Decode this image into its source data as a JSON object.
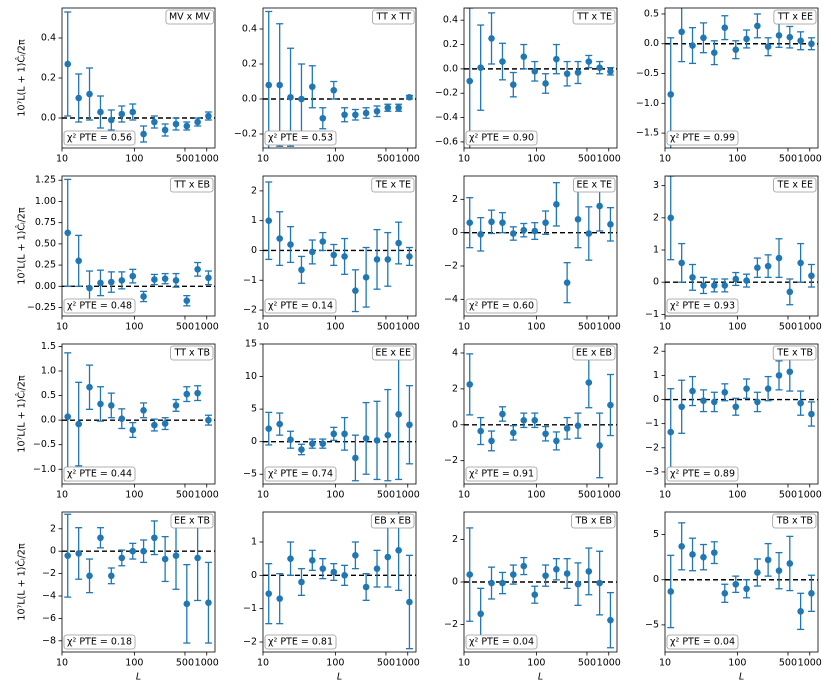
{
  "chart_data": [
    {
      "type": "errorbar",
      "title": "MV x MV",
      "annotation": "χ² PTE = 0.56",
      "ylabel": "10⁷L(L + 1)Ĉₗ/2π",
      "color": "#1f77b4",
      "xscale": "log",
      "hline": 0,
      "x": [
        12,
        17,
        24,
        34,
        48,
        67,
        95,
        134,
        189,
        266,
        376,
        530,
        748,
        1055
      ],
      "values": [
        0.27,
        0.1,
        0.12,
        0.03,
        -0.01,
        0.02,
        0.03,
        -0.08,
        -0.02,
        -0.06,
        -0.03,
        -0.04,
        -0.02,
        0.01
      ],
      "errors": [
        0.26,
        0.12,
        0.13,
        0.08,
        0.05,
        0.04,
        0.04,
        0.04,
        0.03,
        0.03,
        0.03,
        0.02,
        0.02,
        0.02
      ],
      "xlim": [
        10,
        1300
      ],
      "xticks": [
        10,
        100,
        500,
        1000
      ],
      "ylim": [
        -0.15,
        0.55
      ],
      "yticks": [
        {
          "value": 0,
          "label": "0.0"
        },
        0.2,
        0.4
      ]
    },
    {
      "type": "errorbar",
      "title": "TT x TT",
      "annotation": "χ² PTE = 0.53",
      "color": "#1f77b4",
      "xscale": "log",
      "hline": 0,
      "x": [
        12,
        17,
        24,
        34,
        48,
        67,
        95,
        134,
        189,
        266,
        376,
        530,
        748,
        1055
      ],
      "values": [
        0.08,
        0.08,
        0.01,
        0.0,
        0.07,
        -0.11,
        0.05,
        -0.09,
        -0.09,
        -0.08,
        -0.07,
        -0.05,
        -0.05,
        0.01
      ],
      "errors": [
        0.42,
        0.35,
        0.28,
        0.2,
        0.12,
        0.06,
        0.05,
        0.04,
        0.03,
        0.03,
        0.03,
        0.02,
        0.02,
        0.01
      ],
      "xlim": [
        10,
        1300
      ],
      "xticks": [
        10,
        100,
        500,
        1000
      ],
      "ylim": [
        -0.28,
        0.52
      ],
      "yticks": [
        {
          "value": -0.2,
          "label": "−0.2"
        },
        {
          "value": 0,
          "label": "0.0"
        },
        0.2,
        0.4
      ]
    },
    {
      "type": "errorbar",
      "title": "TT x TE",
      "annotation": "χ² PTE = 0.90",
      "color": "#1f77b4",
      "xscale": "log",
      "hline": 0,
      "x": [
        12,
        17,
        24,
        34,
        48,
        67,
        95,
        134,
        189,
        266,
        376,
        530,
        748,
        1055
      ],
      "values": [
        -0.1,
        0.01,
        0.25,
        0.06,
        -0.13,
        0.1,
        -0.02,
        -0.12,
        0.08,
        -0.04,
        -0.03,
        0.06,
        0.01,
        -0.02
      ],
      "errors": [
        0.6,
        0.35,
        0.21,
        0.15,
        0.1,
        0.1,
        0.08,
        0.08,
        0.12,
        0.1,
        0.09,
        0.05,
        0.05,
        0.03
      ],
      "xlim": [
        10,
        1300
      ],
      "xticks": [
        10,
        100,
        500,
        1000
      ],
      "ylim": [
        -0.65,
        0.5
      ],
      "yticks": [
        {
          "value": -0.6,
          "label": "−0.6"
        },
        {
          "value": -0.4,
          "label": "−0.4"
        },
        {
          "value": -0.2,
          "label": "−0.2"
        },
        {
          "value": 0,
          "label": "0.0"
        },
        0.2,
        0.4
      ]
    },
    {
      "type": "errorbar",
      "title": "TT x EE",
      "annotation": "χ² PTE = 0.99",
      "color": "#1f77b4",
      "xscale": "log",
      "hline": 0,
      "x": [
        12,
        17,
        24,
        34,
        48,
        67,
        95,
        134,
        189,
        266,
        376,
        530,
        748,
        1055
      ],
      "values": [
        -0.85,
        0.2,
        -0.03,
        0.1,
        -0.15,
        0.27,
        -0.1,
        0.08,
        0.3,
        -0.05,
        0.14,
        0.11,
        0.05,
        0.0
      ],
      "errors": [
        0.95,
        0.5,
        0.3,
        0.25,
        0.2,
        0.2,
        0.15,
        0.15,
        0.2,
        0.15,
        0.2,
        0.18,
        0.15,
        0.1
      ],
      "xlim": [
        10,
        1300
      ],
      "xticks": [
        10,
        100,
        500,
        1000
      ],
      "ylim": [
        -1.75,
        0.6
      ],
      "yticks": [
        {
          "value": -1.5,
          "label": "−1.5"
        },
        {
          "value": -1,
          "label": "−1.0"
        },
        {
          "value": -0.5,
          "label": "−0.5"
        },
        {
          "value": 0,
          "label": "0.0"
        },
        0.5
      ]
    },
    {
      "type": "errorbar",
      "title": "TT x EB",
      "annotation": "χ² PTE = 0.48",
      "ylabel": "10⁷L(L + 1)Ĉₗ/2π",
      "color": "#1f77b4",
      "xscale": "log",
      "hline": 0,
      "x": [
        12,
        17,
        24,
        34,
        48,
        67,
        95,
        134,
        189,
        266,
        376,
        530,
        748,
        1055
      ],
      "values": [
        0.63,
        0.3,
        -0.02,
        0.04,
        0.05,
        0.07,
        0.12,
        -0.12,
        0.08,
        0.09,
        0.07,
        -0.17,
        0.2,
        0.1
      ],
      "errors": [
        0.63,
        0.3,
        0.2,
        0.15,
        0.12,
        0.1,
        0.08,
        0.06,
        0.06,
        0.06,
        0.08,
        0.06,
        0.08,
        0.08
      ],
      "xlim": [
        10,
        1300
      ],
      "xticks": [
        10,
        100,
        500,
        1000
      ],
      "ylim": [
        -0.35,
        1.3
      ],
      "yticks": [
        {
          "value": -0.25,
          "label": "−0.25"
        },
        {
          "value": 0,
          "label": "0.00"
        },
        0.25,
        {
          "value": 0.5,
          "label": "0.50"
        },
        0.75,
        {
          "value": 1,
          "label": "1.00"
        },
        1.25
      ]
    },
    {
      "type": "errorbar",
      "title": "TE x TE",
      "annotation": "χ² PTE = 0.14",
      "color": "#1f77b4",
      "xscale": "log",
      "hline": 0,
      "x": [
        12,
        17,
        24,
        34,
        48,
        67,
        95,
        134,
        189,
        266,
        376,
        530,
        748,
        1055
      ],
      "values": [
        1.0,
        0.4,
        0.2,
        -0.65,
        -0.05,
        0.3,
        -0.15,
        -0.2,
        -1.35,
        -0.9,
        -0.3,
        -0.3,
        0.25,
        -0.2
      ],
      "errors": [
        1.3,
        0.9,
        0.6,
        0.45,
        0.4,
        0.3,
        0.35,
        0.6,
        0.7,
        1.0,
        1.0,
        0.9,
        0.7,
        0.3
      ],
      "xlim": [
        10,
        1300
      ],
      "xticks": [
        10,
        100,
        500,
        1000
      ],
      "ylim": [
        -2.2,
        2.5
      ],
      "yticks": [
        {
          "value": -2,
          "label": "−2"
        },
        {
          "value": -1,
          "label": "−1"
        },
        0,
        1,
        2
      ]
    },
    {
      "type": "errorbar",
      "title": "EE x TE",
      "annotation": "χ² PTE = 0.60",
      "color": "#1f77b4",
      "xscale": "log",
      "hline": 0,
      "x": [
        12,
        17,
        24,
        34,
        48,
        67,
        95,
        134,
        189,
        266,
        376,
        530,
        748,
        1055
      ],
      "values": [
        0.6,
        -0.1,
        0.65,
        0.6,
        -0.05,
        0.15,
        0.1,
        0.6,
        1.7,
        -3.0,
        0.8,
        -0.05,
        1.6,
        0.5
      ],
      "errors": [
        1.5,
        1.0,
        0.7,
        0.6,
        0.4,
        0.4,
        0.5,
        0.7,
        1.3,
        1.2,
        1.7,
        1.6,
        1.5,
        1.0
      ],
      "xlim": [
        10,
        1300
      ],
      "xticks": [
        10,
        100,
        500,
        1000
      ],
      "ylim": [
        -5,
        3.4
      ],
      "yticks": [
        {
          "value": -4,
          "label": "−4"
        },
        {
          "value": -2,
          "label": "−2"
        },
        0,
        2
      ]
    },
    {
      "type": "errorbar",
      "title": "TE x EE",
      "annotation": "χ² PTE = 0.93",
      "color": "#1f77b4",
      "xscale": "log",
      "hline": 0,
      "x": [
        12,
        17,
        24,
        34,
        48,
        67,
        95,
        134,
        189,
        266,
        376,
        530,
        748,
        1055
      ],
      "values": [
        2.0,
        0.6,
        0.15,
        -0.1,
        -0.1,
        -0.1,
        0.1,
        0.05,
        0.45,
        0.5,
        0.75,
        -0.3,
        0.6,
        0.2
      ],
      "errors": [
        1.3,
        0.6,
        0.4,
        0.25,
        0.2,
        0.2,
        0.2,
        0.2,
        0.3,
        0.35,
        0.6,
        0.4,
        0.6,
        0.35
      ],
      "xlim": [
        10,
        1300
      ],
      "xticks": [
        10,
        100,
        500,
        1000
      ],
      "ylim": [
        -1.05,
        3.3
      ],
      "yticks": [
        {
          "value": -1,
          "label": "−1"
        },
        0,
        1,
        2,
        3
      ]
    },
    {
      "type": "errorbar",
      "title": "TT x TB",
      "annotation": "χ² PTE = 0.44",
      "ylabel": "10⁷L(L + 1)Ĉₗ/2π",
      "color": "#1f77b4",
      "xscale": "log",
      "hline": 0,
      "x": [
        12,
        17,
        24,
        34,
        48,
        67,
        95,
        134,
        189,
        266,
        376,
        530,
        748,
        1055
      ],
      "values": [
        0.07,
        -0.08,
        0.67,
        0.33,
        0.3,
        0.03,
        -0.2,
        0.2,
        -0.1,
        -0.07,
        0.3,
        0.53,
        0.55,
        0.0
      ],
      "errors": [
        1.3,
        0.85,
        0.45,
        0.35,
        0.25,
        0.2,
        0.15,
        0.15,
        0.12,
        0.12,
        0.12,
        0.15,
        0.15,
        0.1
      ],
      "xlim": [
        10,
        1300
      ],
      "xticks": [
        10,
        100,
        500,
        1000
      ],
      "ylim": [
        -1.3,
        1.55
      ],
      "yticks": [
        {
          "value": -1,
          "label": "−1.0"
        },
        {
          "value": -0.5,
          "label": "−0.5"
        },
        {
          "value": 0,
          "label": "0.0"
        },
        0.5,
        {
          "value": 1,
          "label": "1.0"
        },
        1.5
      ]
    },
    {
      "type": "errorbar",
      "title": "EE x EE",
      "annotation": "χ² PTE = 0.74",
      "color": "#1f77b4",
      "xscale": "log",
      "hline": 0,
      "x": [
        12,
        17,
        24,
        34,
        48,
        67,
        95,
        134,
        189,
        266,
        376,
        530,
        748,
        1055
      ],
      "values": [
        2.0,
        2.7,
        0.3,
        -1.2,
        -0.3,
        -0.3,
        1.2,
        1.2,
        -2.5,
        0.5,
        0.2,
        1.0,
        4.2,
        2.6
      ],
      "errors": [
        2.5,
        1.7,
        1.3,
        0.8,
        0.7,
        0.7,
        1.0,
        2.5,
        3.5,
        5.5,
        6.0,
        7.0,
        10.0,
        6.0
      ],
      "xlim": [
        10,
        1300
      ],
      "xticks": [
        10,
        100,
        500,
        1000
      ],
      "ylim": [
        -6.5,
        15
      ],
      "yticks": [
        {
          "value": -5,
          "label": "−5"
        },
        0,
        5,
        10,
        15
      ]
    },
    {
      "type": "errorbar",
      "title": "EE x EB",
      "annotation": "χ² PTE = 0.91",
      "color": "#1f77b4",
      "xscale": "log",
      "hline": 0,
      "x": [
        12,
        17,
        24,
        34,
        48,
        67,
        95,
        134,
        189,
        266,
        376,
        530,
        748,
        1055
      ],
      "values": [
        2.25,
        -0.35,
        -0.9,
        0.6,
        -0.45,
        0.25,
        0.25,
        -0.5,
        -0.9,
        -0.2,
        -0.05,
        2.35,
        -1.15,
        1.1
      ],
      "errors": [
        1.7,
        0.75,
        0.55,
        0.4,
        0.4,
        0.4,
        0.4,
        0.4,
        0.5,
        0.6,
        0.7,
        1.4,
        1.8,
        1.7
      ],
      "xlim": [
        10,
        1300
      ],
      "xticks": [
        10,
        100,
        500,
        1000
      ],
      "ylim": [
        -3.3,
        4.5
      ],
      "yticks": [
        {
          "value": -2,
          "label": "−2"
        },
        0,
        2,
        4
      ]
    },
    {
      "type": "errorbar",
      "title": "TE x TB",
      "annotation": "χ² PTE = 0.89",
      "color": "#1f77b4",
      "xscale": "log",
      "hline": 0,
      "x": [
        12,
        17,
        24,
        34,
        48,
        67,
        95,
        134,
        189,
        266,
        376,
        530,
        748,
        1055
      ],
      "values": [
        -1.35,
        -0.3,
        0.35,
        -0.05,
        -0.1,
        0.3,
        -0.3,
        0.45,
        -0.1,
        0.45,
        1.0,
        1.15,
        -0.15,
        -0.6
      ],
      "errors": [
        1.8,
        1.1,
        0.6,
        0.45,
        0.4,
        0.35,
        0.35,
        0.4,
        0.4,
        0.5,
        0.6,
        0.8,
        0.5,
        0.5
      ],
      "xlim": [
        10,
        1300
      ],
      "xticks": [
        10,
        100,
        500,
        1000
      ],
      "ylim": [
        -3.5,
        2.3
      ],
      "yticks": [
        {
          "value": -3,
          "label": "−3"
        },
        {
          "value": -2,
          "label": "−2"
        },
        {
          "value": -1,
          "label": "−1"
        },
        0,
        1,
        2
      ]
    },
    {
      "type": "errorbar",
      "title": "EE x TB",
      "annotation": "χ² PTE = 0.18",
      "ylabel": "10⁷L(L + 1)Ĉₗ/2π",
      "xlabel": "L",
      "color": "#1f77b4",
      "xscale": "log",
      "hline": 0,
      "x": [
        12,
        17,
        24,
        34,
        48,
        67,
        95,
        134,
        189,
        266,
        376,
        530,
        748,
        1055
      ],
      "values": [
        -0.4,
        -0.2,
        -2.2,
        1.2,
        -2.2,
        -0.6,
        0.0,
        0.0,
        1.2,
        -0.7,
        -0.4,
        -4.7,
        -0.6,
        -4.6
      ],
      "errors": [
        3.7,
        2.3,
        1.5,
        0.9,
        0.7,
        0.7,
        0.7,
        1.0,
        1.5,
        2.0,
        3.0,
        3.5,
        3.8,
        3.6
      ],
      "xlim": [
        10,
        1300
      ],
      "xticks": [
        10,
        100,
        500,
        1000
      ],
      "ylim": [
        -9,
        3.5
      ],
      "yticks": [
        {
          "value": -8,
          "label": "−8"
        },
        {
          "value": -6,
          "label": "−6"
        },
        {
          "value": -4,
          "label": "−4"
        },
        {
          "value": -2,
          "label": "−2"
        },
        0,
        2
      ]
    },
    {
      "type": "errorbar",
      "title": "EB x EB",
      "annotation": "χ² PTE = 0.81",
      "xlabel": "L",
      "color": "#1f77b4",
      "xscale": "log",
      "hline": 0,
      "x": [
        12,
        17,
        24,
        34,
        48,
        67,
        95,
        134,
        189,
        266,
        376,
        530,
        748,
        1055
      ],
      "values": [
        -0.55,
        -0.7,
        0.5,
        -0.2,
        0.45,
        0.2,
        0.1,
        0.0,
        0.6,
        -0.35,
        0.2,
        0.55,
        0.75,
        -0.8
      ],
      "errors": [
        0.9,
        0.75,
        0.5,
        0.4,
        0.3,
        0.3,
        0.25,
        0.3,
        0.4,
        0.4,
        0.55,
        0.9,
        1.2,
        1.4
      ],
      "xlim": [
        10,
        1300
      ],
      "xticks": [
        10,
        100,
        500,
        1000
      ],
      "ylim": [
        -2.3,
        1.9
      ],
      "yticks": [
        {
          "value": -2,
          "label": "−2"
        },
        {
          "value": -1,
          "label": "−1"
        },
        0,
        1
      ]
    },
    {
      "type": "errorbar",
      "title": "TB x EB",
      "annotation": "χ² PTE = 0.04",
      "xlabel": "L",
      "color": "#1f77b4",
      "xscale": "log",
      "hline": 0,
      "x": [
        12,
        17,
        24,
        34,
        48,
        67,
        95,
        134,
        189,
        266,
        376,
        530,
        748,
        1055
      ],
      "values": [
        0.35,
        -1.5,
        -0.05,
        -0.05,
        0.35,
        0.75,
        -0.6,
        0.3,
        0.6,
        0.4,
        -0.1,
        0.5,
        -0.05,
        -1.8
      ],
      "errors": [
        2.2,
        1.2,
        0.75,
        0.5,
        0.45,
        0.4,
        0.4,
        0.5,
        0.5,
        0.7,
        1.0,
        1.1,
        1.5,
        1.3
      ],
      "xlim": [
        10,
        1300
      ],
      "xticks": [
        10,
        100,
        500,
        1000
      ],
      "ylim": [
        -3.3,
        3.3
      ],
      "yticks": [
        {
          "value": -2,
          "label": "−2"
        },
        0,
        2
      ]
    },
    {
      "type": "errorbar",
      "title": "TB x TB",
      "annotation": "χ² PTE = 0.04",
      "xlabel": "L",
      "color": "#1f77b4",
      "xscale": "log",
      "hline": 0,
      "x": [
        12,
        17,
        24,
        34,
        48,
        67,
        95,
        134,
        189,
        266,
        376,
        530,
        748,
        1055
      ],
      "values": [
        -1.3,
        3.7,
        2.8,
        2.5,
        3.0,
        -1.5,
        -0.5,
        -1.0,
        0.8,
        2.2,
        1.0,
        1.8,
        -3.5,
        -1.5
      ],
      "errors": [
        4.0,
        2.6,
        1.8,
        1.4,
        1.2,
        1.0,
        0.9,
        1.0,
        1.5,
        1.8,
        2.0,
        3.0,
        2.0,
        2.0
      ],
      "xlim": [
        10,
        1300
      ],
      "xticks": [
        10,
        100,
        500,
        1000
      ],
      "ylim": [
        -8,
        7.5
      ],
      "yticks": [
        {
          "value": -5,
          "label": "−5"
        },
        0,
        5
      ]
    }
  ]
}
